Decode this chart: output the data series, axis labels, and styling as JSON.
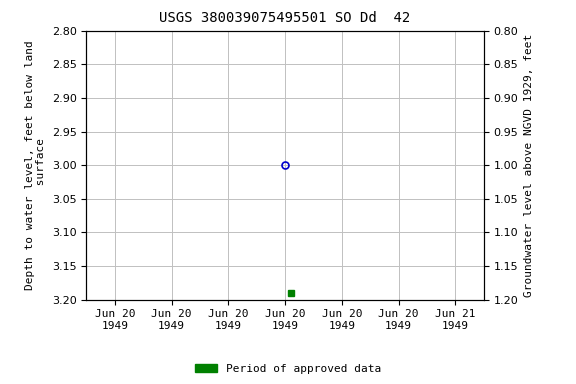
{
  "title": "USGS 380039075495501 SO Dd  42",
  "ylabel_left": "Depth to water level, feet below land\n surface",
  "ylabel_right": "Groundwater level above NGVD 1929, feet",
  "ylim_left": [
    2.8,
    3.2
  ],
  "ylim_right": [
    1.2,
    0.8
  ],
  "yticks_left": [
    2.8,
    2.85,
    2.9,
    2.95,
    3.0,
    3.05,
    3.1,
    3.15,
    3.2
  ],
  "yticks_right": [
    1.2,
    1.15,
    1.1,
    1.05,
    1.0,
    0.95,
    0.9,
    0.85,
    0.8
  ],
  "circle_value": 3.0,
  "square_value": 3.19,
  "legend_label": "Period of approved data",
  "legend_color": "#008000",
  "background_color": "#ffffff",
  "grid_color": "#c0c0c0",
  "circle_color": "#0000cc",
  "square_color": "#008000",
  "title_fontsize": 10,
  "axis_label_fontsize": 8,
  "tick_fontsize": 8
}
